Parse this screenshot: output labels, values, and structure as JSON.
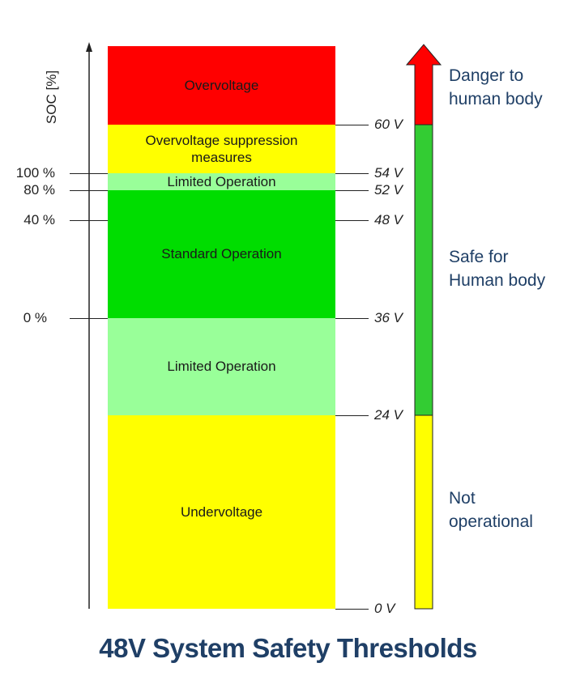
{
  "axis_label": "SOC [%]",
  "zones": [
    {
      "label": "Overvoltage",
      "color": "#ff0000",
      "from_v": 60,
      "to_v": 66
    },
    {
      "label": "Overvoltage suppression measures",
      "color": "#ffff00",
      "from_v": 54,
      "to_v": 60
    },
    {
      "label": "Limited Operation",
      "color": "#99ff99",
      "from_v": 52,
      "to_v": 54
    },
    {
      "label": "Standard Operation",
      "color": "#00dd00",
      "from_v": 36,
      "to_v": 52
    },
    {
      "label": "Limited Operation",
      "color": "#99ff99",
      "from_v": 24,
      "to_v": 36
    },
    {
      "label": "Undervoltage",
      "color": "#ffff00",
      "from_v": 0,
      "to_v": 24
    }
  ],
  "voltage_levels": [
    {
      "value": 60,
      "label": "60 V"
    },
    {
      "value": 54,
      "label": "54 V"
    },
    {
      "value": 52,
      "label": "52 V"
    },
    {
      "value": 48,
      "label": "48 V"
    },
    {
      "value": 36,
      "label": "36 V"
    },
    {
      "value": 24,
      "label": "24 V"
    },
    {
      "value": 0,
      "label": "0 V"
    }
  ],
  "soc_levels": [
    {
      "voltage": 54,
      "label": "100 %"
    },
    {
      "voltage": 52,
      "label": "80 %"
    },
    {
      "voltage": 48,
      "label": "40 %"
    },
    {
      "voltage": 36,
      "label": "0 %"
    }
  ],
  "safety_bar": [
    {
      "from_v": 60,
      "to_v": 66,
      "color": "#ff0000",
      "label": "Danger to human body"
    },
    {
      "from_v": 24,
      "to_v": 60,
      "color": "#33cc33",
      "label": "Safe for Human body"
    },
    {
      "from_v": 0,
      "to_v": 24,
      "color": "#ffff00",
      "label": "Not operational"
    }
  ],
  "side_labels": {
    "danger": [
      "Danger to",
      "human body"
    ],
    "safe": [
      "Safe for",
      "Human body"
    ],
    "not_op": [
      "Not",
      "operational"
    ]
  },
  "title": "48V System Safety Thresholds"
}
